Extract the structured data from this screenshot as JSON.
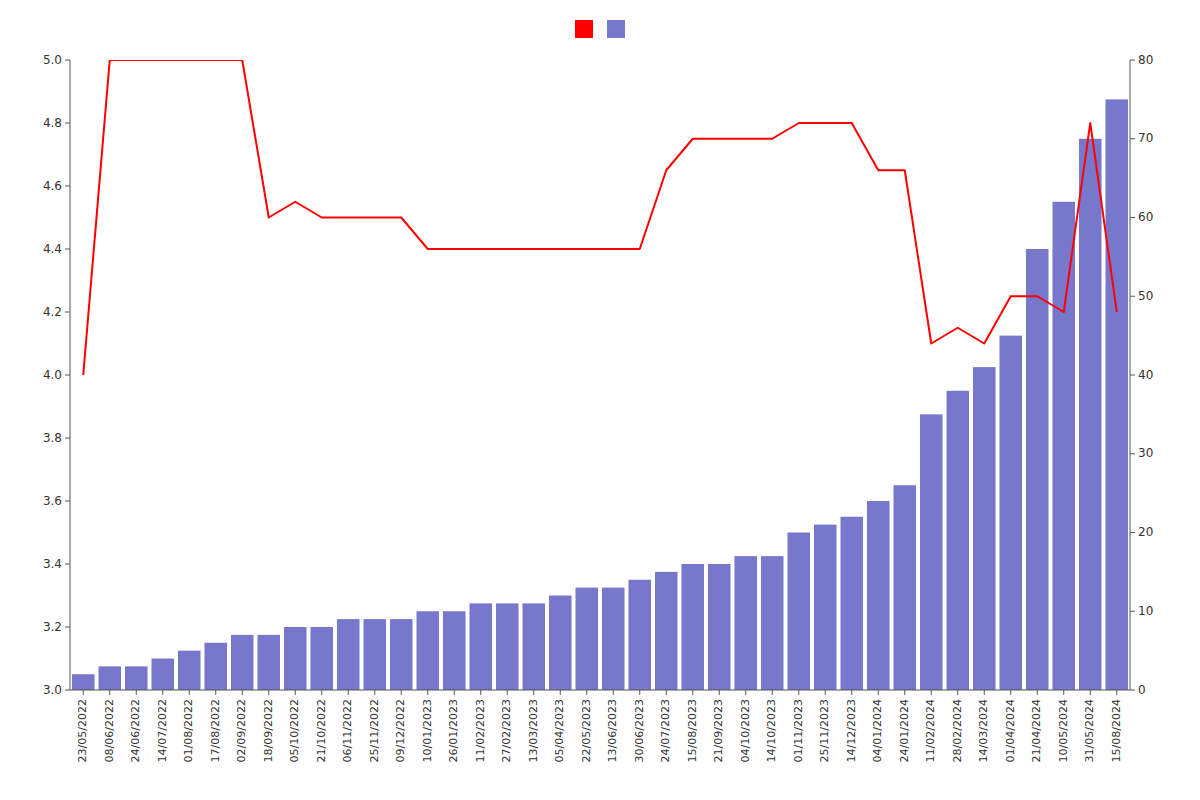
{
  "chart_data": {
    "type": "bar",
    "categories": [
      "23/05/2022",
      "08/06/2022",
      "24/06/2022",
      "14/07/2022",
      "01/08/2022",
      "17/08/2022",
      "02/09/2022",
      "18/09/2022",
      "05/10/2022",
      "21/10/2022",
      "06/11/2022",
      "25/11/2022",
      "09/12/2022",
      "10/01/2023",
      "26/01/2023",
      "11/02/2023",
      "27/02/2023",
      "13/03/2023",
      "05/04/2023",
      "22/05/2023",
      "13/06/2023",
      "30/06/2023",
      "24/07/2023",
      "15/08/2023",
      "21/09/2023",
      "04/10/2023",
      "14/10/2023",
      "01/11/2023",
      "25/11/2023",
      "14/12/2023",
      "04/01/2024",
      "24/01/2024",
      "11/02/2024",
      "28/02/2024",
      "14/03/2024",
      "01/04/2024",
      "21/04/2024",
      "10/05/2024",
      "31/05/2024",
      "15/08/2024"
    ],
    "series": [
      {
        "type": "line",
        "color": "#ff0000",
        "axis": "y",
        "values": [
          4.0,
          5.0,
          5.0,
          5.0,
          5.0,
          5.0,
          5.0,
          4.5,
          4.55,
          4.5,
          4.5,
          4.5,
          4.5,
          4.4,
          4.4,
          4.4,
          4.4,
          4.4,
          4.4,
          4.4,
          4.4,
          4.4,
          4.65,
          4.75,
          4.75,
          4.75,
          4.75,
          4.8,
          4.8,
          4.8,
          4.65,
          4.65,
          4.1,
          4.15,
          4.1,
          4.25,
          4.25,
          4.2,
          4.8,
          4.2
        ]
      },
      {
        "type": "bar",
        "color": "#7777cc",
        "axis": "y2",
        "values": [
          2,
          3,
          3,
          4,
          5,
          6,
          7,
          7,
          8,
          8,
          9,
          9,
          9,
          10,
          10,
          11,
          11,
          11,
          12,
          13,
          13,
          14,
          15,
          16,
          16,
          17,
          17,
          20,
          21,
          22,
          24,
          26,
          35,
          38,
          41,
          45,
          56,
          62,
          70,
          75
        ]
      }
    ],
    "ylim": [
      3.0,
      5.0
    ],
    "yticks": [
      {
        "value": 3.0,
        "label": "3.0"
      },
      3.2,
      3.4,
      3.6,
      3.8,
      {
        "value": 4.0,
        "label": "4.0"
      },
      4.2,
      4.4,
      4.6,
      4.8,
      {
        "value": 5.0,
        "label": "5.0"
      }
    ],
    "y2lim": [
      0,
      80
    ],
    "y2ticks": [
      0,
      10,
      20,
      30,
      40,
      50,
      60,
      70,
      80
    ],
    "grid": false,
    "legend": "top"
  }
}
